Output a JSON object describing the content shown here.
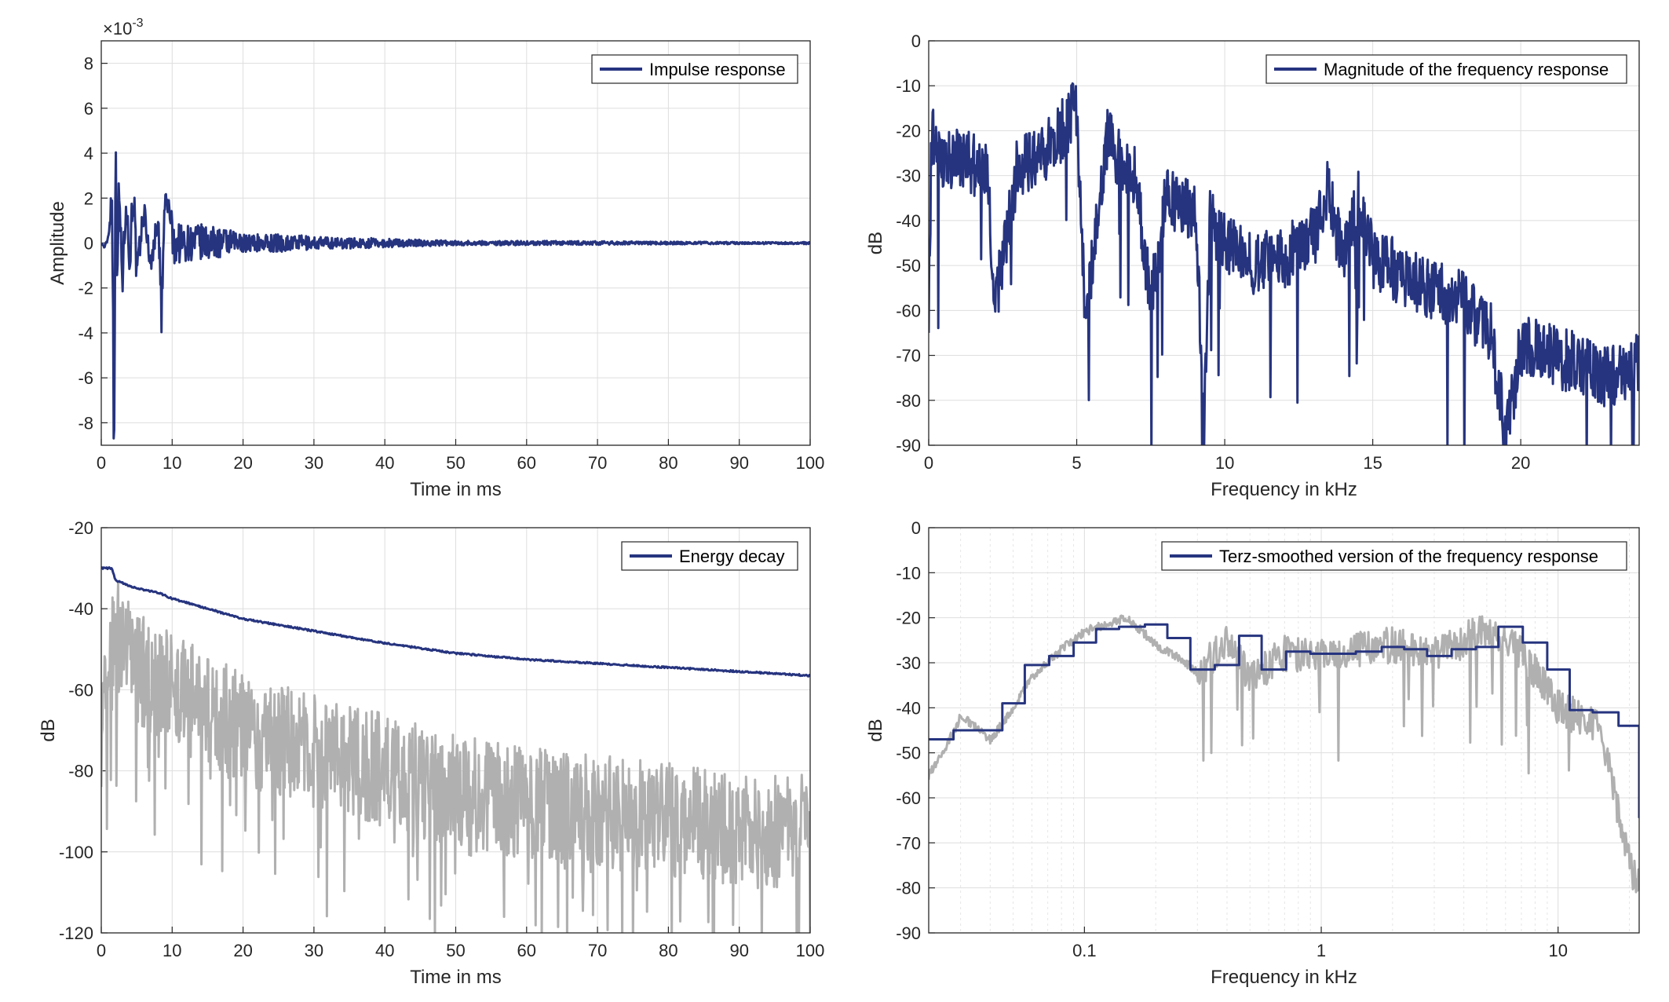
{
  "chart_data": [
    {
      "type": "line",
      "xlabel": "Time in ms",
      "ylabel": "Amplitude",
      "xlim": [
        0,
        100
      ],
      "ylim": [
        -9,
        9
      ],
      "exponent_label": "×10",
      "exponent_value": "-3",
      "xticks": [
        "0",
        "10",
        "20",
        "30",
        "40",
        "50",
        "60",
        "70",
        "80",
        "90",
        "100"
      ],
      "yticks": [
        "-8",
        "-6",
        "-4",
        "-2",
        "0",
        "2",
        "4",
        "6",
        "8"
      ],
      "grid": true,
      "legend_position": "top-right",
      "series": [
        {
          "name": "Impulse response",
          "color": "#26347f",
          "x": [
            0,
            0.5,
            1,
            1.5,
            1.8,
            2.0,
            2.2,
            2.5,
            3,
            3.5,
            4,
            4.5,
            5,
            6,
            7,
            8,
            8.5,
            9,
            10,
            12,
            14,
            16,
            18,
            20,
            25,
            30,
            40,
            50,
            60,
            70,
            80,
            90,
            100
          ],
          "y": [
            0,
            -0.2,
            0.3,
            2.2,
            -8.2,
            4.6,
            -1.5,
            2.3,
            -1.7,
            2.3,
            -1.2,
            2.8,
            -1.5,
            1.5,
            -1.0,
            1.2,
            -3.2,
            2.0,
            1.0,
            -0.8,
            0.9,
            -0.7,
            0.6,
            -0.4,
            0.4,
            -0.3,
            0.2,
            -0.1,
            0.1,
            0.08,
            0.06,
            0.05,
            0.0
          ]
        }
      ]
    },
    {
      "type": "line",
      "xlabel": "Frequency in kHz",
      "ylabel": "dB",
      "xlim": [
        0,
        24
      ],
      "ylim": [
        -90,
        0
      ],
      "xticks": [
        "0",
        "5",
        "10",
        "15",
        "20"
      ],
      "yticks": [
        "0",
        "-10",
        "-20",
        "-30",
        "-40",
        "-50",
        "-60",
        "-70",
        "-80",
        "-90"
      ],
      "grid": true,
      "legend_position": "top-right",
      "series": [
        {
          "name": "Magnitude of the frequency response",
          "color": "#26347f",
          "x": [
            0,
            0.1,
            0.5,
            1,
            2,
            2.2,
            3,
            4,
            4.5,
            5,
            5.3,
            6,
            7,
            7.5,
            8,
            9,
            9.3,
            9.5,
            10,
            11,
            12,
            13,
            13.5,
            14,
            14.5,
            15,
            16,
            17,
            18,
            19,
            19.5,
            20,
            21,
            22,
            23,
            24
          ],
          "y": [
            -58,
            -20,
            -28,
            -25,
            -30,
            -61,
            -28,
            -24,
            -20,
            -15,
            -62,
            -22,
            -30,
            -58,
            -35,
            -38,
            -82,
            -40,
            -45,
            -50,
            -48,
            -44,
            -32,
            -50,
            -35,
            -48,
            -52,
            -55,
            -58,
            -65,
            -88,
            -68,
            -70,
            -72,
            -75,
            -72
          ]
        }
      ]
    },
    {
      "type": "line",
      "xlabel": "Time in ms",
      "ylabel": "dB",
      "xlim": [
        0,
        100
      ],
      "ylim": [
        -120,
        -20
      ],
      "xticks": [
        "0",
        "10",
        "20",
        "30",
        "40",
        "50",
        "60",
        "70",
        "80",
        "90",
        "100"
      ],
      "yticks": [
        "-20",
        "-40",
        "-60",
        "-80",
        "-100",
        "-120"
      ],
      "grid": true,
      "legend_position": "top-right",
      "series": [
        {
          "name": "Energy decay",
          "color": "#26347f",
          "x": [
            0,
            1.5,
            2,
            5,
            8,
            10,
            15,
            20,
            25,
            30,
            35,
            40,
            50,
            60,
            70,
            80,
            90,
            100
          ],
          "y": [
            -30,
            -30,
            -33,
            -35,
            -36,
            -37.5,
            -40,
            -42.5,
            -44,
            -45.5,
            -47,
            -48.5,
            -51,
            -52.5,
            -53.5,
            -54.5,
            -55.5,
            -56.5
          ]
        },
        {
          "color": "#b0b0b0",
          "x": [
            0,
            2,
            5,
            10,
            20,
            30,
            40,
            50,
            60,
            70,
            80,
            90,
            100
          ],
          "y": [
            -70,
            -45,
            -55,
            -60,
            -70,
            -75,
            -80,
            -85,
            -88,
            -90,
            -92,
            -95,
            -95
          ]
        }
      ]
    },
    {
      "type": "line",
      "xscale": "log",
      "xlabel": "Frequency in kHz",
      "ylabel": "dB",
      "xlim": [
        0.022,
        22
      ],
      "ylim": [
        -90,
        0
      ],
      "xticks": [
        "0.1",
        "1",
        "10"
      ],
      "yticks": [
        "0",
        "-10",
        "-20",
        "-30",
        "-40",
        "-50",
        "-60",
        "-70",
        "-80",
        "-90"
      ],
      "grid": true,
      "legend_position": "top-right",
      "series": [
        {
          "name": "Terz-smoothed version of the frequency response",
          "color": "#26347f",
          "x": [
            0.022,
            0.0224,
            0.028,
            0.0355,
            0.045,
            0.056,
            0.071,
            0.09,
            0.112,
            0.14,
            0.18,
            0.224,
            0.28,
            0.355,
            0.45,
            0.56,
            0.71,
            0.9,
            1.12,
            1.4,
            1.8,
            2.24,
            2.8,
            3.55,
            4.5,
            5.6,
            7.1,
            9,
            11.2,
            14,
            18,
            22
          ],
          "y": [
            -47,
            -47,
            -45,
            -45,
            -39,
            -30.5,
            -28.5,
            -25.5,
            -22.5,
            -22,
            -21.5,
            -24.5,
            -31.5,
            -30.5,
            -24,
            -31.5,
            -27.5,
            -28,
            -28,
            -27.5,
            -26.5,
            -27,
            -28.5,
            -27,
            -26.5,
            -22,
            -25.5,
            -31.5,
            -40.5,
            -41,
            -44,
            -64.5
          ]
        },
        {
          "color": "#b0b0b0",
          "x": [
            0.022,
            0.03,
            0.04,
            0.05,
            0.06,
            0.08,
            0.1,
            0.15,
            0.2,
            0.3,
            0.4,
            0.5,
            0.7,
            1,
            1.5,
            2,
            3,
            4,
            5,
            7,
            10,
            15,
            20,
            22
          ],
          "y": [
            -55,
            -42,
            -47,
            -40,
            -33,
            -27,
            -23,
            -20,
            -26,
            -32,
            -25,
            -33,
            -28,
            -28,
            -27,
            -26,
            -28,
            -25,
            -22,
            -28,
            -40,
            -45,
            -75,
            -80
          ]
        }
      ]
    }
  ]
}
